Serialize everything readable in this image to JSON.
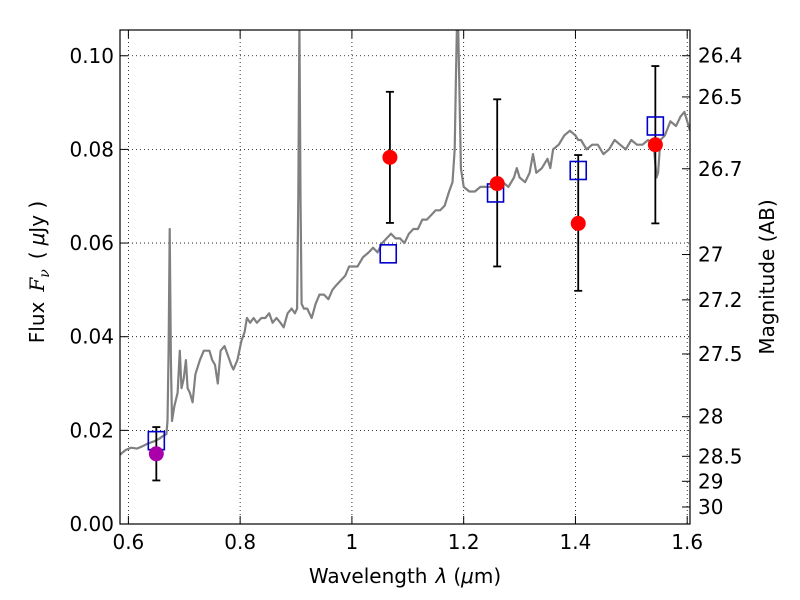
{
  "chart_data": {
    "type": "scatter",
    "xlabel": "Wavelength",
    "xlabel_symbol": "λ",
    "xlabel_unit_open": "(",
    "xlabel_unit_mu": "μ",
    "xlabel_unit_rest": "m)",
    "ylabel_prefix": "Flux",
    "ylabel_symbol": "F",
    "ylabel_subscript": "ν",
    "ylabel_unit_open": "(",
    "ylabel_unit_mu": "μ",
    "ylabel_unit_rest": "Jy )",
    "y2label": "Magnitude (AB)",
    "xlim": [
      0.585,
      1.605
    ],
    "ylim": [
      0.0,
      0.1055
    ],
    "grid": true,
    "x_ticks": [
      {
        "value": 0.6,
        "label": "0.6"
      },
      {
        "value": 0.8,
        "label": "0.8"
      },
      {
        "value": 1.0,
        "label": "1"
      },
      {
        "value": 1.2,
        "label": "1.2"
      },
      {
        "value": 1.4,
        "label": "1.4"
      },
      {
        "value": 1.6,
        "label": "1.6"
      }
    ],
    "y_ticks": [
      {
        "value": 0.0,
        "label": "0.00"
      },
      {
        "value": 0.02,
        "label": "0.02"
      },
      {
        "value": 0.04,
        "label": "0.04"
      },
      {
        "value": 0.06,
        "label": "0.06"
      },
      {
        "value": 0.08,
        "label": "0.08"
      },
      {
        "value": 0.1,
        "label": "0.10"
      }
    ],
    "y2_ticks": [
      {
        "value": 26.4,
        "label": "26.4"
      },
      {
        "value": 26.5,
        "label": "26.5"
      },
      {
        "value": 26.7,
        "label": "26.7"
      },
      {
        "value": 27.0,
        "label": "27"
      },
      {
        "value": 27.2,
        "label": "27.2"
      },
      {
        "value": 27.5,
        "label": "27.5"
      },
      {
        "value": 28.0,
        "label": "28"
      },
      {
        "value": 28.5,
        "label": "28.5"
      },
      {
        "value": 29.0,
        "label": "29"
      },
      {
        "value": 30.0,
        "label": "30"
      }
    ],
    "series": [
      {
        "kind": "line",
        "color": "#808080",
        "points": [
          [
            0.585,
            0.0148
          ],
          [
            0.595,
            0.0158
          ],
          [
            0.605,
            0.0163
          ],
          [
            0.615,
            0.0161
          ],
          [
            0.625,
            0.0166
          ],
          [
            0.635,
            0.0172
          ],
          [
            0.645,
            0.0176
          ],
          [
            0.655,
            0.0182
          ],
          [
            0.662,
            0.0188
          ],
          [
            0.668,
            0.0192
          ],
          [
            0.67,
            0.022
          ],
          [
            0.672,
            0.037
          ],
          [
            0.674,
            0.063
          ],
          [
            0.676,
            0.035
          ],
          [
            0.678,
            0.022
          ],
          [
            0.682,
            0.025
          ],
          [
            0.688,
            0.028
          ],
          [
            0.692,
            0.037
          ],
          [
            0.695,
            0.029
          ],
          [
            0.699,
            0.031
          ],
          [
            0.703,
            0.035
          ],
          [
            0.706,
            0.029
          ],
          [
            0.71,
            0.028
          ],
          [
            0.715,
            0.026
          ],
          [
            0.72,
            0.032
          ],
          [
            0.728,
            0.035
          ],
          [
            0.735,
            0.037
          ],
          [
            0.745,
            0.037
          ],
          [
            0.75,
            0.035
          ],
          [
            0.755,
            0.034
          ],
          [
            0.76,
            0.03
          ],
          [
            0.765,
            0.037
          ],
          [
            0.772,
            0.038
          ],
          [
            0.778,
            0.036
          ],
          [
            0.784,
            0.034
          ],
          [
            0.788,
            0.033
          ],
          [
            0.795,
            0.035
          ],
          [
            0.802,
            0.039
          ],
          [
            0.808,
            0.041
          ],
          [
            0.812,
            0.044
          ],
          [
            0.818,
            0.043
          ],
          [
            0.824,
            0.044
          ],
          [
            0.83,
            0.043
          ],
          [
            0.838,
            0.044
          ],
          [
            0.845,
            0.044
          ],
          [
            0.852,
            0.045
          ],
          [
            0.858,
            0.043
          ],
          [
            0.865,
            0.044
          ],
          [
            0.872,
            0.043
          ],
          [
            0.878,
            0.042
          ],
          [
            0.885,
            0.045
          ],
          [
            0.892,
            0.046
          ],
          [
            0.898,
            0.045
          ],
          [
            0.902,
            0.046
          ],
          [
            0.904,
            0.07
          ],
          [
            0.906,
            0.107
          ],
          [
            0.908,
            0.07
          ],
          [
            0.91,
            0.047
          ],
          [
            0.914,
            0.046
          ],
          [
            0.92,
            0.046
          ],
          [
            0.928,
            0.044
          ],
          [
            0.935,
            0.047
          ],
          [
            0.942,
            0.049
          ],
          [
            0.95,
            0.049
          ],
          [
            0.958,
            0.048
          ],
          [
            0.965,
            0.05
          ],
          [
            0.972,
            0.051
          ],
          [
            0.98,
            0.052
          ],
          [
            0.988,
            0.053
          ],
          [
            0.995,
            0.055
          ],
          [
            1.002,
            0.055
          ],
          [
            1.01,
            0.055
          ],
          [
            1.02,
            0.057
          ],
          [
            1.03,
            0.058
          ],
          [
            1.038,
            0.059
          ],
          [
            1.046,
            0.058
          ],
          [
            1.054,
            0.06
          ],
          [
            1.062,
            0.061
          ],
          [
            1.07,
            0.062
          ],
          [
            1.078,
            0.061
          ],
          [
            1.086,
            0.061
          ],
          [
            1.094,
            0.06
          ],
          [
            1.102,
            0.062
          ],
          [
            1.11,
            0.063
          ],
          [
            1.118,
            0.063
          ],
          [
            1.126,
            0.065
          ],
          [
            1.134,
            0.065
          ],
          [
            1.142,
            0.066
          ],
          [
            1.15,
            0.067
          ],
          [
            1.158,
            0.067
          ],
          [
            1.166,
            0.068
          ],
          [
            1.174,
            0.071
          ],
          [
            1.18,
            0.073
          ],
          [
            1.184,
            0.08
          ],
          [
            1.186,
            0.095
          ],
          [
            1.188,
            0.107
          ],
          [
            1.19,
            0.107
          ],
          [
            1.192,
            0.095
          ],
          [
            1.195,
            0.076
          ],
          [
            1.2,
            0.072
          ],
          [
            1.21,
            0.071
          ],
          [
            1.22,
            0.071
          ],
          [
            1.23,
            0.072
          ],
          [
            1.24,
            0.072
          ],
          [
            1.25,
            0.072
          ],
          [
            1.26,
            0.072
          ],
          [
            1.27,
            0.073
          ],
          [
            1.28,
            0.072
          ],
          [
            1.29,
            0.074
          ],
          [
            1.295,
            0.076
          ],
          [
            1.3,
            0.074
          ],
          [
            1.31,
            0.073
          ],
          [
            1.318,
            0.075
          ],
          [
            1.324,
            0.079
          ],
          [
            1.33,
            0.075
          ],
          [
            1.34,
            0.076
          ],
          [
            1.35,
            0.078
          ],
          [
            1.355,
            0.076
          ],
          [
            1.36,
            0.08
          ],
          [
            1.37,
            0.081
          ],
          [
            1.38,
            0.083
          ],
          [
            1.39,
            0.084
          ],
          [
            1.4,
            0.083
          ],
          [
            1.405,
            0.082
          ],
          [
            1.41,
            0.082
          ],
          [
            1.42,
            0.08
          ],
          [
            1.43,
            0.081
          ],
          [
            1.44,
            0.081
          ],
          [
            1.45,
            0.079
          ],
          [
            1.46,
            0.08
          ],
          [
            1.47,
            0.082
          ],
          [
            1.48,
            0.081
          ],
          [
            1.49,
            0.08
          ],
          [
            1.5,
            0.082
          ],
          [
            1.51,
            0.081
          ],
          [
            1.52,
            0.081
          ],
          [
            1.53,
            0.082
          ],
          [
            1.54,
            0.081
          ],
          [
            1.545,
            0.074
          ],
          [
            1.548,
            0.075
          ],
          [
            1.552,
            0.082
          ],
          [
            1.56,
            0.083
          ],
          [
            1.57,
            0.086
          ],
          [
            1.58,
            0.085
          ],
          [
            1.588,
            0.087
          ],
          [
            1.595,
            0.088
          ],
          [
            1.6,
            0.086
          ],
          [
            1.605,
            0.084
          ]
        ]
      },
      {
        "kind": "markers",
        "marker": "open-square",
        "color": "#0000cc",
        "points": [
          {
            "x": 0.65,
            "y": 0.0178
          },
          {
            "x": 1.065,
            "y": 0.0577
          },
          {
            "x": 1.257,
            "y": 0.0707
          },
          {
            "x": 1.405,
            "y": 0.0755
          },
          {
            "x": 1.543,
            "y": 0.085
          }
        ]
      },
      {
        "kind": "markers-errorbars",
        "marker": "filled-circle",
        "color": "#ff0000",
        "first_point_color": "#aa00aa",
        "points": [
          {
            "x": 0.65,
            "y": 0.015,
            "ylow": 0.0093,
            "yhigh": 0.0207
          },
          {
            "x": 1.068,
            "y": 0.0783,
            "ylow": 0.0643,
            "yhigh": 0.0923
          },
          {
            "x": 1.26,
            "y": 0.0727,
            "ylow": 0.055,
            "yhigh": 0.0907
          },
          {
            "x": 1.405,
            "y": 0.0642,
            "ylow": 0.0498,
            "yhigh": 0.0788
          },
          {
            "x": 1.543,
            "y": 0.081,
            "ylow": 0.0642,
            "yhigh": 0.0978
          }
        ]
      }
    ]
  }
}
